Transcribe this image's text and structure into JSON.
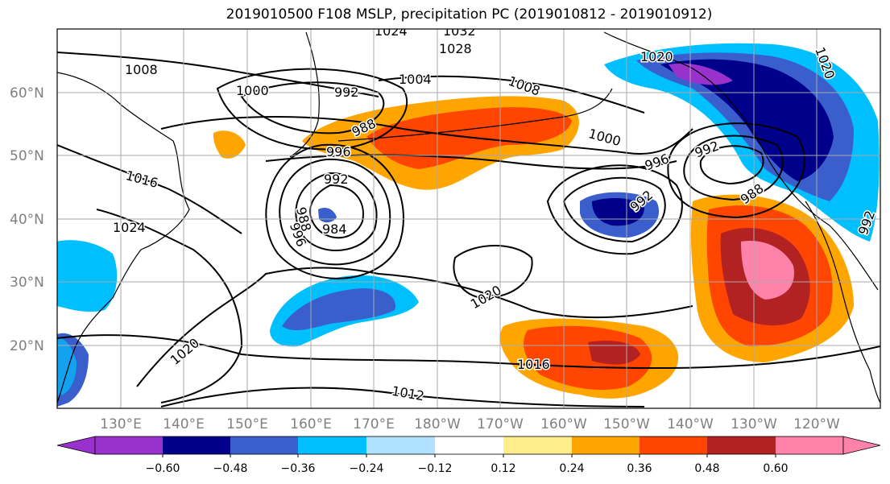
{
  "title": "2019010500 F108 MSLP, precipitation PC (2019010812 - 2019010912)",
  "map": {
    "lon_ticks": [
      "130°E",
      "140°E",
      "150°E",
      "160°E",
      "170°E",
      "180°W",
      "170°W",
      "160°W",
      "150°W",
      "140°W",
      "130°W",
      "120°W"
    ],
    "lat_ticks": [
      "60°N",
      "50°N",
      "40°N",
      "30°N",
      "20°N"
    ],
    "contour_labels": [
      "1024",
      "1032",
      "1028",
      "1020",
      "1008",
      "1000",
      "992",
      "1004",
      "1008",
      "988",
      "996",
      "1000",
      "996",
      "992",
      "1016",
      "992",
      "992",
      "988",
      "996",
      "984",
      "988",
      "1024",
      "1020",
      "1020",
      "1016",
      "1012",
      "992",
      "1020"
    ]
  },
  "colorbar": {
    "ticks": [
      "−0.60",
      "−0.48",
      "−0.36",
      "−0.24",
      "−0.12",
      "0.12",
      "0.24",
      "0.36",
      "0.48",
      "0.60"
    ],
    "colors": [
      "#9932cc",
      "#00008b",
      "#3a5fcd",
      "#00bfff",
      "#b0e2ff",
      "#ffffff",
      "#ffec8b",
      "#ffa500",
      "#ff4500",
      "#b22222",
      "#ff82ab"
    ]
  }
}
